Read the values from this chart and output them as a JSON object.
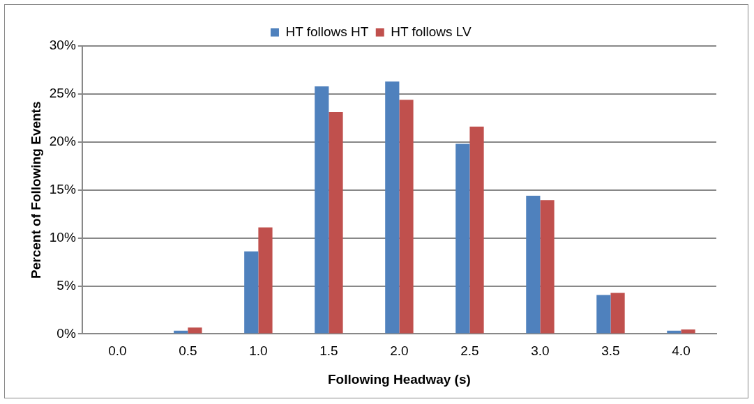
{
  "chart_data": {
    "type": "bar",
    "xlabel": "Following Headway (s)",
    "ylabel": "Percent of Following Events",
    "categories": [
      "0.0",
      "0.5",
      "1.0",
      "1.5",
      "2.0",
      "2.5",
      "3.0",
      "3.5",
      "4.0"
    ],
    "series": [
      {
        "name": "HT follows HT",
        "color": "#4f81bd",
        "values": [
          0,
          0.33,
          8.6,
          25.8,
          26.3,
          19.8,
          14.4,
          4.05,
          0.33
        ]
      },
      {
        "name": "HT follows LV",
        "color": "#c0504d",
        "values": [
          0,
          0.67,
          11.1,
          23.1,
          24.4,
          21.6,
          13.95,
          4.27,
          0.47
        ]
      }
    ],
    "ylim": [
      0,
      30
    ],
    "yticks": [
      {
        "value": 0,
        "label": "0%"
      },
      {
        "value": 5,
        "label": "5%"
      },
      {
        "value": 10,
        "label": "10%"
      },
      {
        "value": 15,
        "label": "15%"
      },
      {
        "value": 20,
        "label": "20%"
      },
      {
        "value": 25,
        "label": "25%"
      },
      {
        "value": 30,
        "label": "30%"
      }
    ],
    "grid": "y",
    "legend": "top"
  }
}
